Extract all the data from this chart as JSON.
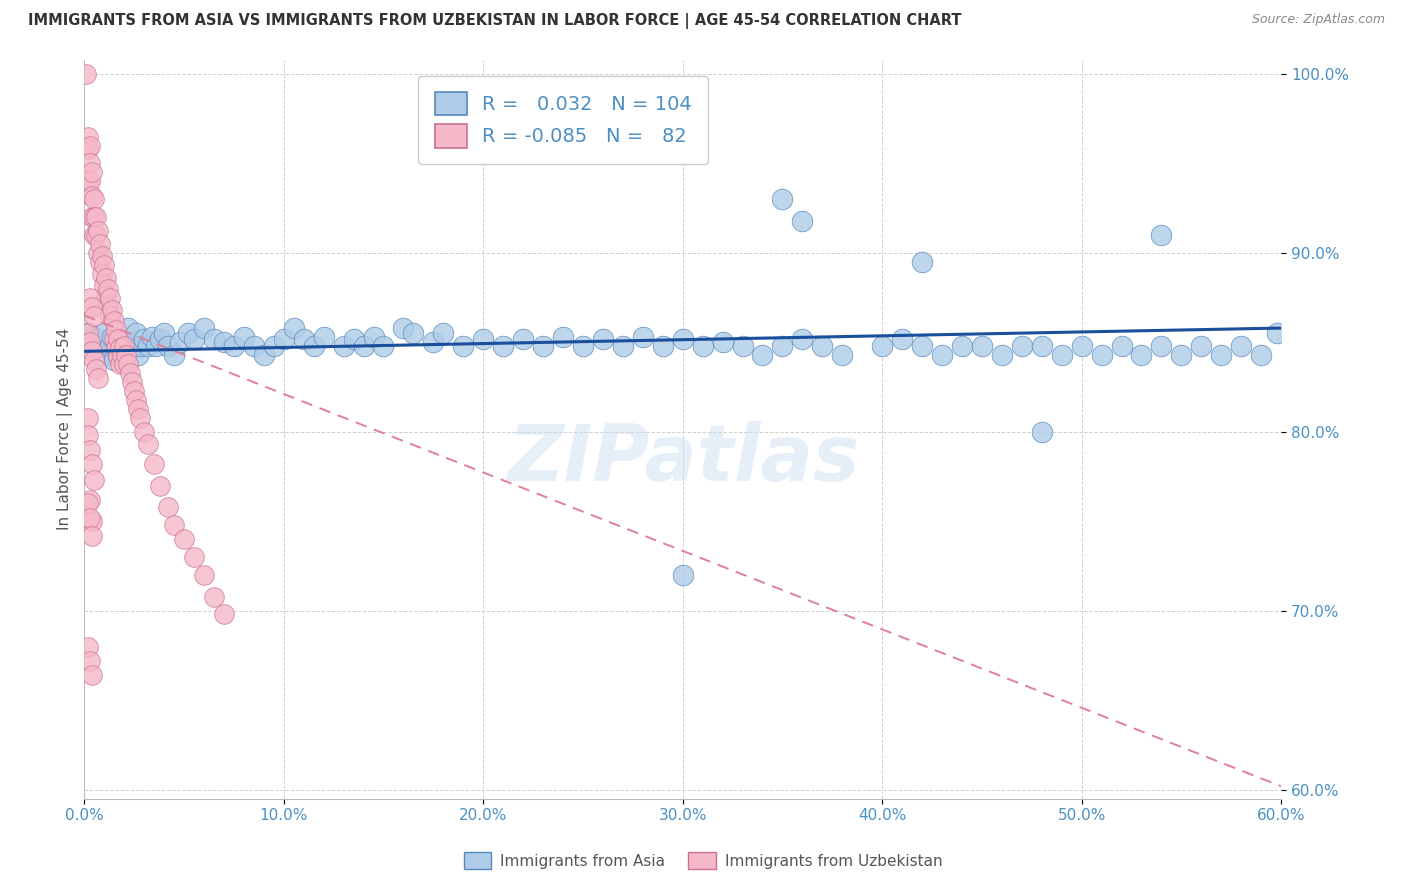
{
  "title": "IMMIGRANTS FROM ASIA VS IMMIGRANTS FROM UZBEKISTAN IN LABOR FORCE | AGE 45-54 CORRELATION CHART",
  "source": "Source: ZipAtlas.com",
  "ylabel": "In Labor Force | Age 45-54",
  "R1": 0.032,
  "N1": 104,
  "R2": -0.085,
  "N2": 82,
  "color_blue": "#aecce8",
  "color_pink": "#f5b8c8",
  "edge_blue": "#5588bb",
  "edge_pink": "#cc7090",
  "line_color_blue": "#1a4f9c",
  "line_color_pink": "#e08098",
  "xlim": [
    0.0,
    0.6
  ],
  "ylim": [
    0.595,
    1.008
  ],
  "xticks": [
    0.0,
    0.1,
    0.2,
    0.3,
    0.4,
    0.5,
    0.6
  ],
  "yticks": [
    0.6,
    0.7,
    0.8,
    0.9,
    1.0
  ],
  "background_color": "#ffffff",
  "watermark": "ZIPatlas",
  "legend_label1": "Immigrants from Asia",
  "legend_label2": "Immigrants from Uzbekistan",
  "blue_trend_x": [
    0.0,
    0.6
  ],
  "blue_trend_y": [
    0.845,
    0.858
  ],
  "pink_trend_x": [
    0.0,
    0.6
  ],
  "pink_trend_y": [
    0.865,
    0.602
  ],
  "blue_x": [
    0.002,
    0.003,
    0.004,
    0.005,
    0.006,
    0.007,
    0.008,
    0.009,
    0.01,
    0.012,
    0.013,
    0.014,
    0.015,
    0.016,
    0.017,
    0.018,
    0.019,
    0.02,
    0.022,
    0.024,
    0.025,
    0.026,
    0.027,
    0.028,
    0.03,
    0.032,
    0.034,
    0.036,
    0.038,
    0.04,
    0.042,
    0.045,
    0.048,
    0.052,
    0.055,
    0.06,
    0.065,
    0.07,
    0.075,
    0.08,
    0.085,
    0.09,
    0.095,
    0.1,
    0.105,
    0.11,
    0.115,
    0.12,
    0.13,
    0.135,
    0.14,
    0.145,
    0.15,
    0.16,
    0.165,
    0.175,
    0.18,
    0.19,
    0.2,
    0.21,
    0.22,
    0.23,
    0.24,
    0.25,
    0.26,
    0.27,
    0.28,
    0.29,
    0.3,
    0.31,
    0.32,
    0.33,
    0.34,
    0.35,
    0.36,
    0.37,
    0.38,
    0.4,
    0.41,
    0.42,
    0.43,
    0.44,
    0.45,
    0.46,
    0.47,
    0.48,
    0.49,
    0.5,
    0.51,
    0.52,
    0.53,
    0.54,
    0.55,
    0.56,
    0.57,
    0.58,
    0.59,
    0.598,
    0.36,
    0.54,
    0.42,
    0.48,
    0.3,
    0.35
  ],
  "blue_y": [
    0.855,
    0.85,
    0.848,
    0.853,
    0.847,
    0.852,
    0.843,
    0.848,
    0.855,
    0.843,
    0.848,
    0.853,
    0.84,
    0.848,
    0.843,
    0.848,
    0.852,
    0.845,
    0.858,
    0.85,
    0.848,
    0.855,
    0.843,
    0.848,
    0.852,
    0.848,
    0.853,
    0.848,
    0.852,
    0.855,
    0.848,
    0.843,
    0.85,
    0.855,
    0.852,
    0.858,
    0.852,
    0.85,
    0.848,
    0.853,
    0.848,
    0.843,
    0.848,
    0.852,
    0.858,
    0.852,
    0.848,
    0.853,
    0.848,
    0.852,
    0.848,
    0.853,
    0.848,
    0.858,
    0.855,
    0.85,
    0.855,
    0.848,
    0.852,
    0.848,
    0.852,
    0.848,
    0.853,
    0.848,
    0.852,
    0.848,
    0.853,
    0.848,
    0.852,
    0.848,
    0.85,
    0.848,
    0.843,
    0.848,
    0.852,
    0.848,
    0.843,
    0.848,
    0.852,
    0.848,
    0.843,
    0.848,
    0.848,
    0.843,
    0.848,
    0.848,
    0.843,
    0.848,
    0.843,
    0.848,
    0.843,
    0.848,
    0.843,
    0.848,
    0.843,
    0.848,
    0.843,
    0.855,
    0.918,
    0.91,
    0.895,
    0.8,
    0.72,
    0.93
  ],
  "pink_x": [
    0.001,
    0.002,
    0.002,
    0.002,
    0.003,
    0.003,
    0.003,
    0.004,
    0.004,
    0.004,
    0.005,
    0.005,
    0.005,
    0.006,
    0.006,
    0.007,
    0.007,
    0.008,
    0.008,
    0.009,
    0.009,
    0.01,
    0.01,
    0.011,
    0.011,
    0.012,
    0.012,
    0.013,
    0.013,
    0.014,
    0.015,
    0.015,
    0.016,
    0.016,
    0.017,
    0.017,
    0.018,
    0.018,
    0.019,
    0.02,
    0.02,
    0.021,
    0.022,
    0.023,
    0.024,
    0.025,
    0.026,
    0.027,
    0.028,
    0.03,
    0.032,
    0.035,
    0.038,
    0.042,
    0.045,
    0.05,
    0.055,
    0.06,
    0.065,
    0.07,
    0.002,
    0.003,
    0.004,
    0.005,
    0.006,
    0.007,
    0.003,
    0.004,
    0.005,
    0.002,
    0.002,
    0.003,
    0.004,
    0.005,
    0.003,
    0.004,
    0.002,
    0.003,
    0.004,
    0.002,
    0.003,
    0.004
  ],
  "pink_y": [
    1.0,
    0.965,
    0.958,
    0.94,
    0.96,
    0.95,
    0.94,
    0.945,
    0.932,
    0.92,
    0.93,
    0.92,
    0.91,
    0.92,
    0.91,
    0.912,
    0.9,
    0.905,
    0.895,
    0.898,
    0.888,
    0.893,
    0.882,
    0.886,
    0.876,
    0.88,
    0.87,
    0.875,
    0.865,
    0.868,
    0.862,
    0.852,
    0.857,
    0.847,
    0.852,
    0.842,
    0.847,
    0.838,
    0.843,
    0.848,
    0.838,
    0.843,
    0.838,
    0.833,
    0.828,
    0.823,
    0.818,
    0.813,
    0.808,
    0.8,
    0.793,
    0.782,
    0.77,
    0.758,
    0.748,
    0.74,
    0.73,
    0.72,
    0.708,
    0.698,
    0.855,
    0.85,
    0.845,
    0.84,
    0.835,
    0.83,
    0.875,
    0.87,
    0.865,
    0.808,
    0.798,
    0.79,
    0.782,
    0.773,
    0.762,
    0.75,
    0.76,
    0.752,
    0.742,
    0.68,
    0.672,
    0.664
  ]
}
